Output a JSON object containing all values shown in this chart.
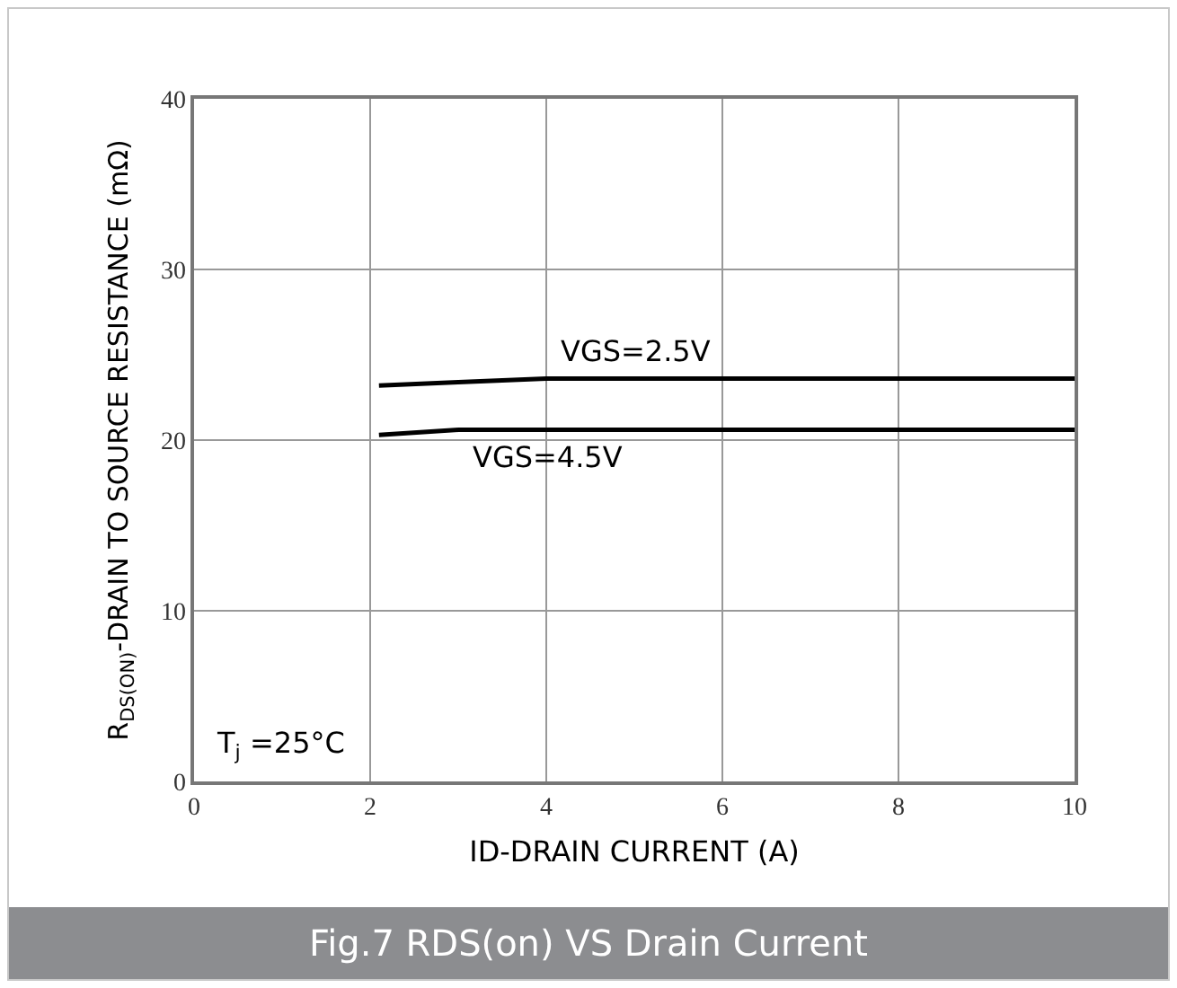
{
  "chart_data": {
    "type": "line",
    "title": "Fig.7 RDS(on) VS Drain Current",
    "xlabel": "ID-DRAIN CURRENT (A)",
    "ylabel": "R$_{DS(ON)}$-DRAIN TO SOURCE RESISTANCE (mΩ)",
    "series": [
      {
        "name": "VGS=2.5V",
        "color": "#000000",
        "x": [
          2.1,
          3,
          4,
          5,
          6,
          8,
          10
        ],
        "values": [
          23.2,
          23.4,
          23.6,
          23.6,
          23.6,
          23.6,
          23.6
        ]
      },
      {
        "name": "VGS=4.5V",
        "color": "#000000",
        "x": [
          2.1,
          3,
          3.5,
          4,
          6,
          8,
          10
        ],
        "values": [
          20.3,
          20.6,
          20.6,
          20.6,
          20.6,
          20.6,
          20.6
        ]
      }
    ],
    "annotations": [
      "T$_{j}$ =25°C"
    ],
    "xlim": [
      0,
      10
    ],
    "xticks": [
      0,
      2,
      4,
      6,
      8,
      10
    ],
    "ylim": [
      0,
      40
    ],
    "yticks": [
      0,
      10,
      20,
      30,
      40
    ],
    "grid": true,
    "legend": false,
    "marker": "none",
    "line_style": "solid"
  }
}
